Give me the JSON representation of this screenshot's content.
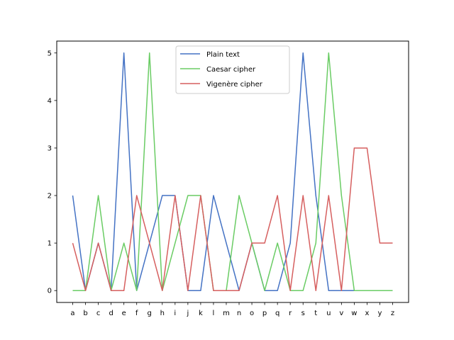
{
  "chart_data": {
    "type": "line",
    "categories": [
      "a",
      "b",
      "c",
      "d",
      "e",
      "f",
      "g",
      "h",
      "i",
      "j",
      "k",
      "l",
      "m",
      "n",
      "o",
      "p",
      "q",
      "r",
      "s",
      "t",
      "u",
      "v",
      "w",
      "x",
      "y",
      "z"
    ],
    "ylim": [
      -0.25,
      5.25
    ],
    "yticks": [
      0,
      1,
      2,
      3,
      4,
      5
    ],
    "grid": false,
    "legend_position": "top-center",
    "series": [
      {
        "name": "Plain text",
        "color": "#4472c4",
        "values": [
          2,
          0,
          1,
          0,
          5,
          0,
          1,
          2,
          2,
          0,
          0,
          2,
          1,
          0,
          1,
          0,
          0,
          1,
          5,
          2,
          0,
          0,
          0,
          0,
          0,
          0
        ]
      },
      {
        "name": "Caesar cipher",
        "color": "#6acc64",
        "values": [
          0,
          0,
          2,
          0,
          1,
          0,
          5,
          0,
          1,
          2,
          2,
          0,
          0,
          2,
          1,
          0,
          1,
          0,
          0,
          1,
          5,
          2,
          0,
          0,
          0,
          0
        ]
      },
      {
        "name": "Vigenère cipher",
        "color": "#d65f5f",
        "values": [
          1,
          0,
          1,
          0,
          0,
          2,
          1,
          0,
          2,
          0,
          2,
          0,
          0,
          0,
          1,
          1,
          2,
          0,
          2,
          0,
          2,
          0,
          3,
          3,
          1,
          1
        ]
      }
    ]
  }
}
